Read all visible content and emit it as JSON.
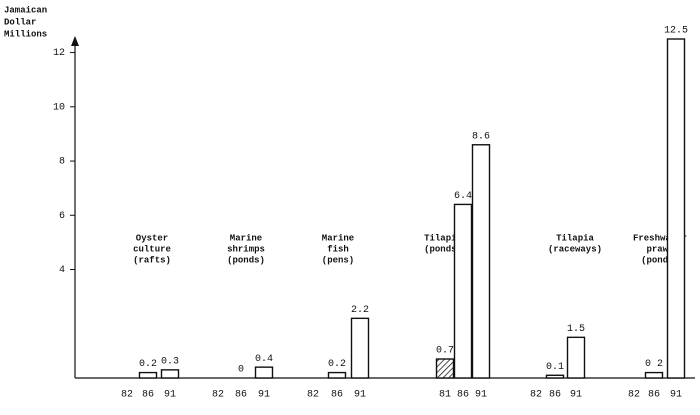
{
  "chart_data": {
    "type": "bar",
    "y_title": [
      "Jamaican",
      "Dollar",
      "Millions"
    ],
    "ylim": [
      0,
      12.5
    ],
    "yticks": [
      4,
      6,
      8,
      10,
      12
    ],
    "groups": [
      {
        "label": [
          "Oyster",
          "culture",
          "(rafts)"
        ],
        "years": [
          "82",
          "86",
          "91"
        ],
        "values": [
          null,
          0.2,
          0.3
        ]
      },
      {
        "label": [
          "Marine",
          "shrimps",
          "(ponds)"
        ],
        "years": [
          "82",
          "86",
          "91"
        ],
        "values": [
          null,
          0,
          0.4
        ]
      },
      {
        "label": [
          "Marine",
          "fish",
          "(pens)"
        ],
        "years": [
          "82",
          "86",
          "91"
        ],
        "values": [
          null,
          0.2,
          2.2
        ]
      },
      {
        "label": [
          "Tilapia",
          "(ponds)"
        ],
        "years": [
          "81",
          "86",
          "91"
        ],
        "values": [
          0.7,
          6.4,
          8.6
        ],
        "hatch": [
          true,
          false,
          false
        ]
      },
      {
        "label": [
          "Tilapia",
          "(raceways)"
        ],
        "years": [
          "82",
          "86",
          "91"
        ],
        "values": [
          null,
          0.1,
          1.5
        ]
      },
      {
        "label": [
          "Freshwater",
          "prawn",
          "(ponds)"
        ],
        "years": [
          "82",
          "86",
          "91"
        ],
        "values": [
          null,
          0.2,
          12.5
        ],
        "value_labels": [
          null,
          "0 2",
          "12.5"
        ]
      }
    ]
  }
}
